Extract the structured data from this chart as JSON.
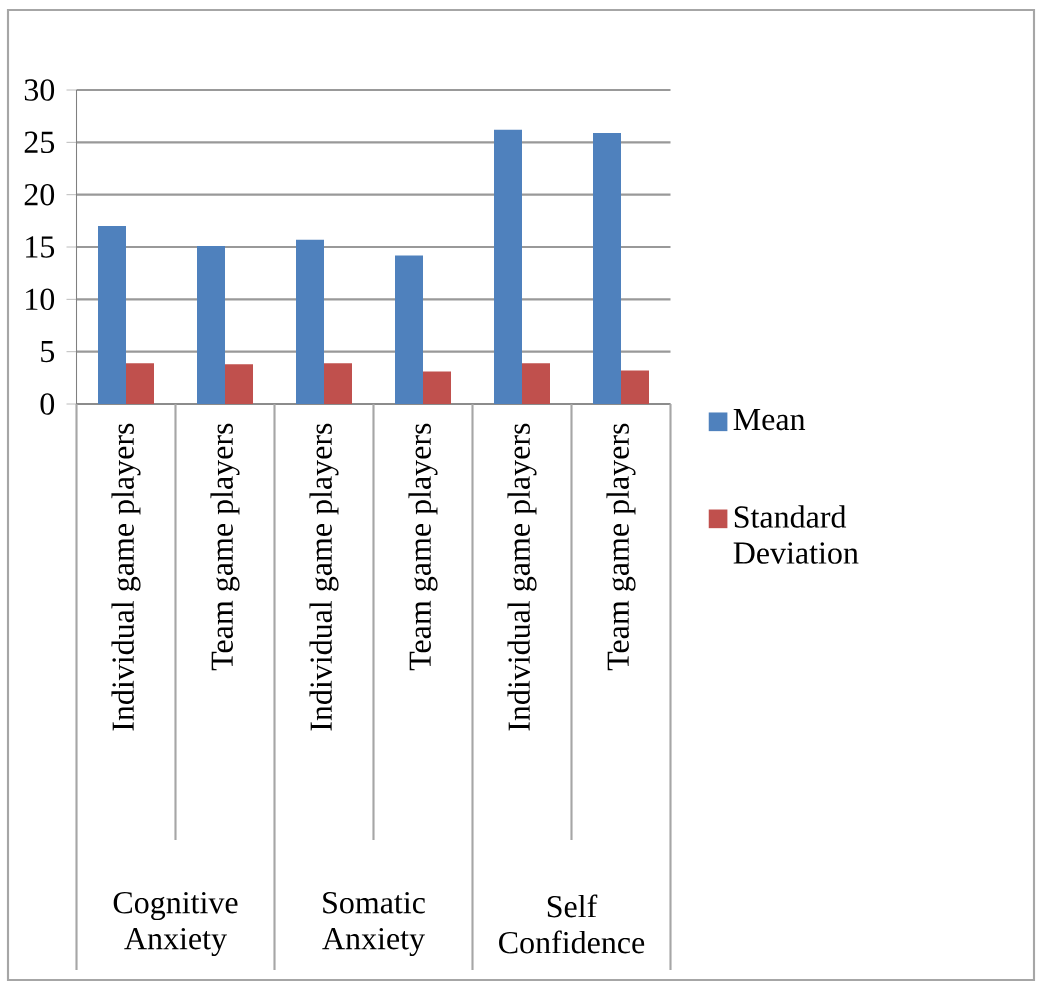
{
  "chart_data": {
    "type": "bar",
    "categories": [
      "Individual game players",
      "Team game players",
      "Individual game players",
      "Team game players",
      "Individual game players",
      "Team game players"
    ],
    "series": [
      {
        "name": "Mean",
        "color": "#4f81bd",
        "values": [
          17.0,
          15.1,
          15.7,
          14.2,
          26.2,
          25.9
        ]
      },
      {
        "name": "Standard Deviation",
        "color": "#c0504d",
        "values": [
          3.9,
          3.8,
          3.9,
          3.1,
          3.9,
          3.2
        ]
      }
    ],
    "annotations": [
      "Cognitive Anxiety",
      "Somatic Anxiety",
      "Self Confidence"
    ],
    "ylim": [
      0,
      30
    ],
    "yticks": [
      0,
      5,
      10,
      15,
      20,
      25,
      30
    ],
    "grid": "y",
    "legend": "right"
  }
}
